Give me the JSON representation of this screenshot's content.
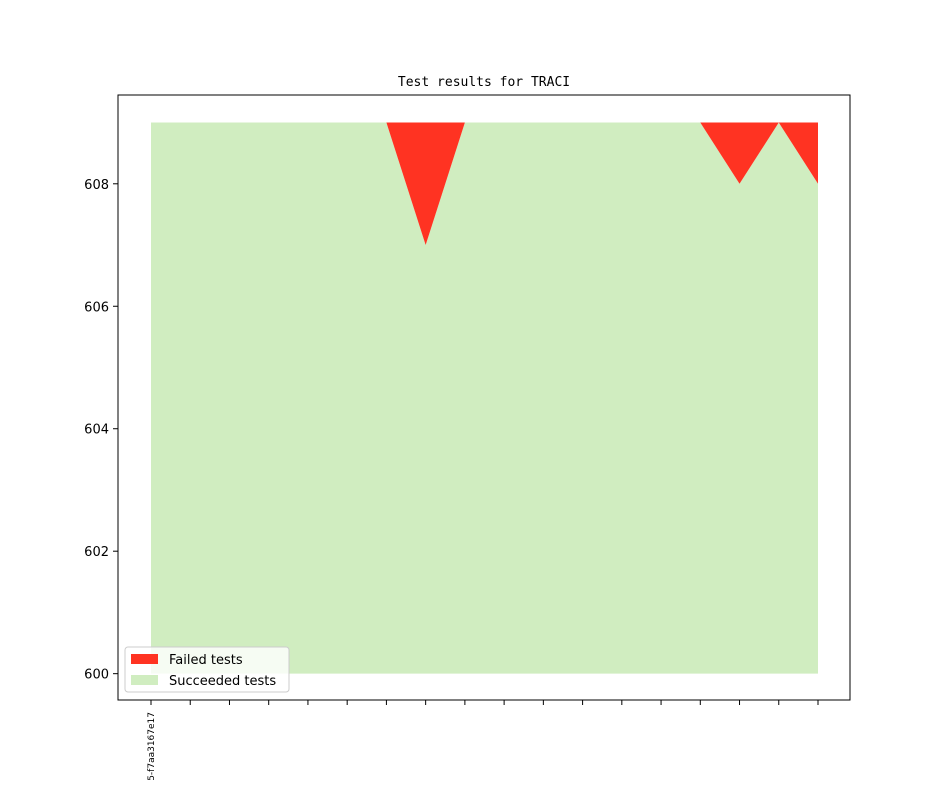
{
  "chart_data": {
    "type": "area",
    "title": "Test results for TRACI",
    "xlabel": "",
    "ylabel": "",
    "x_tick_count": 18,
    "x_tick_labels": [
      "5-f7aa3167e17"
    ],
    "ylim": [
      599.57,
      609.45
    ],
    "y_ticks": [
      600,
      602,
      604,
      606,
      608
    ],
    "series": [
      {
        "name": "Succeeded tests",
        "color": "#d0edc0",
        "values": [
          609,
          609,
          609,
          609,
          609,
          609,
          609,
          607,
          609,
          609,
          609,
          609,
          609,
          609,
          609,
          608,
          609,
          608
        ]
      },
      {
        "name": "Failed tests",
        "color": "#ff3322",
        "values": [
          0,
          0,
          0,
          0,
          0,
          0,
          0,
          2,
          0,
          0,
          0,
          0,
          0,
          0,
          0,
          1,
          0,
          1
        ]
      }
    ],
    "baseline": 600,
    "legend_placement": "lower-left",
    "grid": false
  }
}
